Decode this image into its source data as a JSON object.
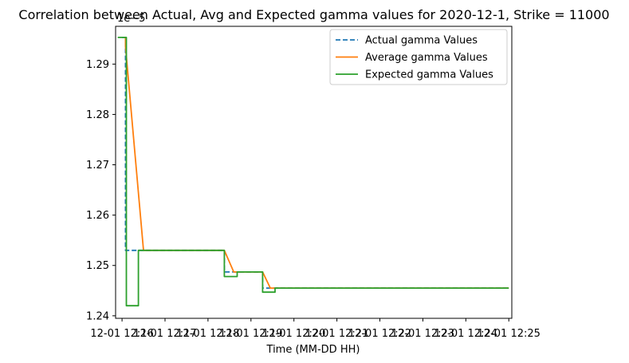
{
  "chart_data": {
    "type": "line",
    "title": "Correlation between Actual, Avg and Expected gamma values for 2020-12-1, Strike = 11000",
    "xlabel": "Time (MM-DD HH)",
    "ylabel": "",
    "offset_label": "1e−5",
    "ylim": [
      1.2395,
      1.2975
    ],
    "xlim_minutes": [
      -0.15,
      9.07
    ],
    "x_ticks": [
      {
        "label": "12-01 12:16",
        "minute": 0
      },
      {
        "label": "12-01 12:17",
        "minute": 1
      },
      {
        "label": "12-01 12:18",
        "minute": 2
      },
      {
        "label": "12-01 12:19",
        "minute": 3
      },
      {
        "label": "12-01 12:20",
        "minute": 4
      },
      {
        "label": "12-01 12:21",
        "minute": 5
      },
      {
        "label": "12-01 12:22",
        "minute": 6
      },
      {
        "label": "12-01 12:23",
        "minute": 7
      },
      {
        "label": "12-01 12:24",
        "minute": 8
      },
      {
        "label": "12-01 12:25",
        "minute": 9
      }
    ],
    "y_ticks": [
      1.24,
      1.25,
      1.26,
      1.27,
      1.28,
      1.29
    ],
    "y_tick_labels": [
      "1.24",
      "1.25",
      "1.26",
      "1.27",
      "1.28",
      "1.29"
    ],
    "grid": false,
    "legend_position": "top-right",
    "series": [
      {
        "name": "Actual gamma Values",
        "color": "#1f77b4",
        "dash": true,
        "step": true,
        "x": [
          0.0,
          0.08,
          2.38,
          3.27,
          9.0
        ],
        "y": [
          1.2953,
          1.253,
          1.2487,
          1.2455,
          1.2455
        ]
      },
      {
        "name": "Average gamma Values",
        "color": "#ff7f0e",
        "dash": false,
        "step": false,
        "x": [
          0.08,
          0.08,
          0.5,
          2.38,
          2.6,
          3.27,
          3.45,
          9.0
        ],
        "y": [
          1.2953,
          1.2935,
          1.253,
          1.253,
          1.2487,
          1.2487,
          1.2455,
          1.2455
        ]
      },
      {
        "name": "Expected gamma Values",
        "color": "#2ca02c",
        "dash": false,
        "step": true,
        "x": [
          -0.1,
          0.1,
          0.38,
          2.38,
          2.68,
          3.27,
          3.56,
          9.0
        ],
        "y": [
          1.2953,
          1.242,
          1.253,
          1.2478,
          1.2487,
          1.2447,
          1.2455,
          1.2455
        ]
      }
    ]
  }
}
